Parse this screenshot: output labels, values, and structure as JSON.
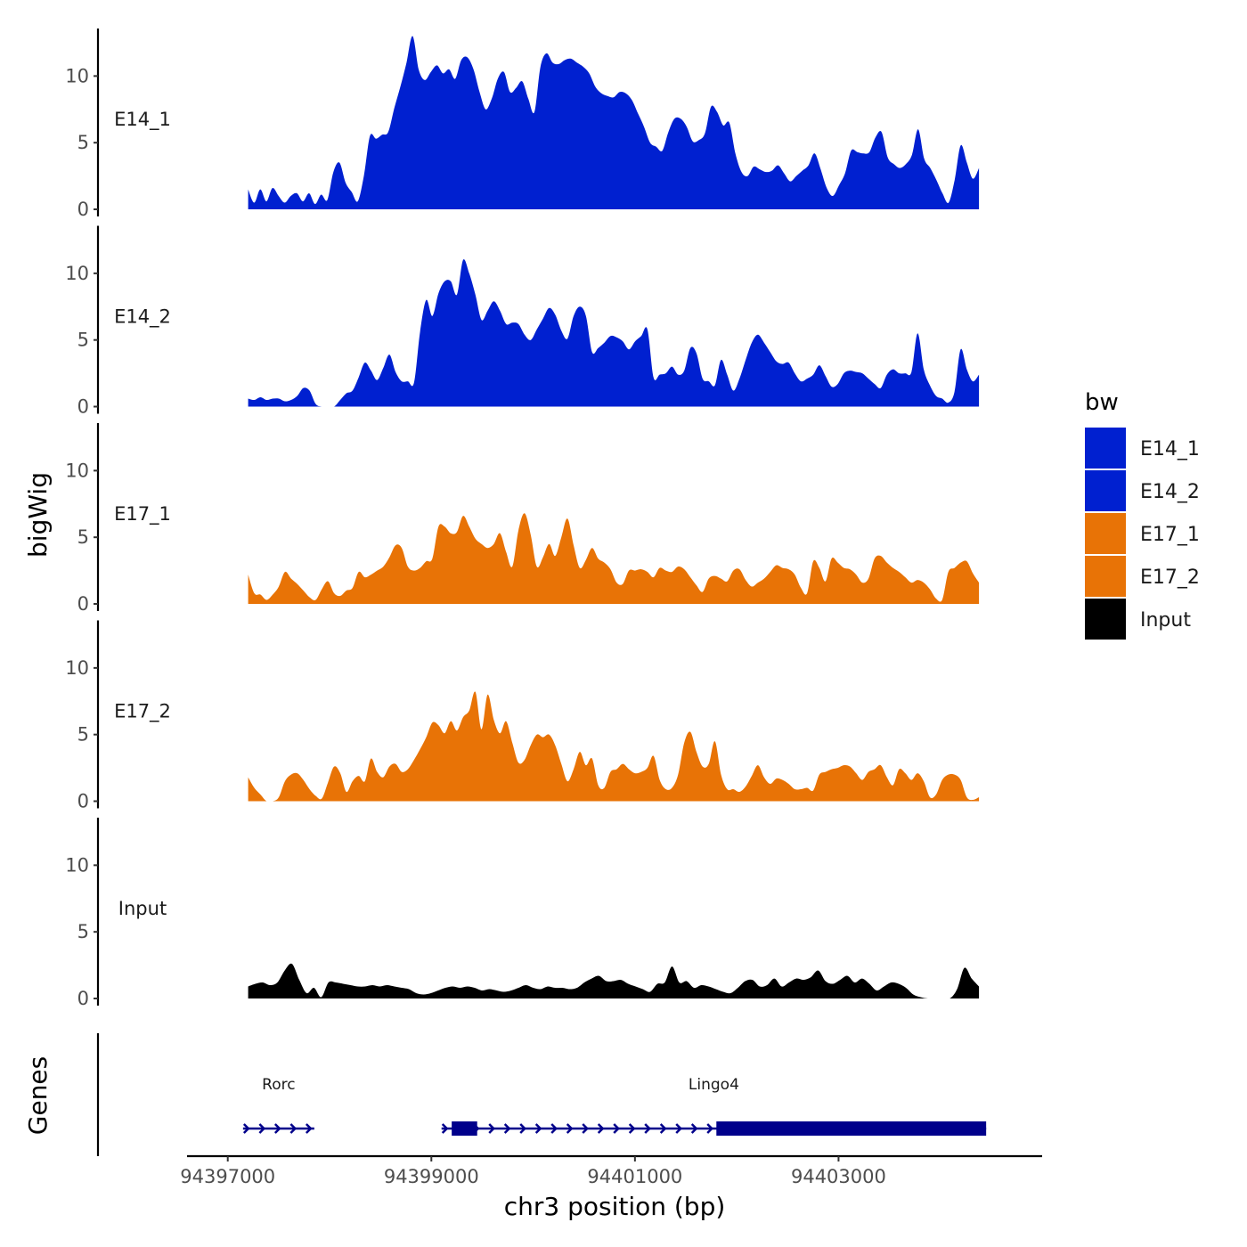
{
  "chart_data": {
    "type": "area",
    "ylabel": "bigWig",
    "genes_label": "Genes",
    "xlabel": "chr3 position (bp)",
    "xlim": [
      94396600,
      94405000
    ],
    "x_ticks": [
      94397000,
      94399000,
      94401000,
      94403000
    ],
    "x_tick_labels": [
      "94397000",
      "94399000",
      "94401000",
      "94403000"
    ],
    "ylim": [
      0,
      13.5
    ],
    "y_ticks": [
      0,
      5,
      10
    ],
    "y_tick_labels": [
      "0",
      "5",
      "10"
    ],
    "x_start": 94397200,
    "x_end": 94404380,
    "series": [
      {
        "name": "E14_1",
        "color": "#0020D0",
        "values": [
          1.5,
          0.5,
          1.5,
          0.6,
          1.6,
          1.0,
          0.5,
          1.0,
          1.2,
          0.6,
          1.2,
          0.4,
          1.1,
          0.7,
          2.8,
          3.5,
          2.0,
          1.3,
          0.6,
          2.5,
          5.5,
          5.3,
          5.6,
          5.8,
          7.6,
          9.2,
          11.0,
          13.0,
          10.5,
          9.7,
          10.3,
          10.8,
          10.2,
          10.5,
          9.8,
          11.2,
          11.4,
          10.5,
          8.8,
          7.5,
          8.3,
          9.8,
          10.3,
          8.8,
          9.1,
          9.6,
          8.3,
          7.3,
          10.7,
          11.7,
          11.0,
          10.9,
          11.2,
          11.3,
          11.0,
          10.7,
          10.2,
          9.2,
          8.7,
          8.5,
          8.4,
          8.8,
          8.7,
          8.2,
          7.2,
          6.2,
          5.0,
          4.7,
          4.4,
          5.8,
          6.8,
          6.8,
          6.2,
          5.1,
          5.2,
          5.7,
          7.7,
          7.3,
          6.3,
          6.5,
          4.2,
          2.8,
          2.5,
          3.2,
          3.0,
          2.8,
          2.9,
          3.3,
          2.7,
          2.1,
          2.5,
          2.9,
          3.3,
          4.2,
          3.0,
          1.6,
          1.0,
          1.8,
          2.7,
          4.4,
          4.3,
          4.2,
          4.3,
          5.4,
          5.8,
          3.9,
          3.4,
          3.1,
          3.4,
          4.1,
          6.0,
          3.8,
          3.1,
          2.2,
          1.2,
          0.5,
          2.2,
          4.8,
          3.5,
          2.3,
          3.1
        ]
      },
      {
        "name": "E14_2",
        "color": "#0020D0",
        "values": [
          0.6,
          0.5,
          0.7,
          0.5,
          0.6,
          0.6,
          0.4,
          0.5,
          0.8,
          1.4,
          1.2,
          0.2,
          0.0,
          0.0,
          0.0,
          0.5,
          1.0,
          1.2,
          2.2,
          3.3,
          2.7,
          2.0,
          2.9,
          3.9,
          2.6,
          1.9,
          1.9,
          1.8,
          5.6,
          8.0,
          6.8,
          8.5,
          9.4,
          9.4,
          8.4,
          11.0,
          10.0,
          8.4,
          6.5,
          7.2,
          7.9,
          7.2,
          6.2,
          6.3,
          6.2,
          5.4,
          5.0,
          5.8,
          6.6,
          7.4,
          6.9,
          5.7,
          5.1,
          6.8,
          7.5,
          6.8,
          4.1,
          4.4,
          4.8,
          5.3,
          5.2,
          4.9,
          4.3,
          4.9,
          5.3,
          5.8,
          2.2,
          2.4,
          2.5,
          3.0,
          2.4,
          2.7,
          4.4,
          4.0,
          2.1,
          1.9,
          1.6,
          3.5,
          2.4,
          1.2,
          2.1,
          3.5,
          4.8,
          5.4,
          4.8,
          4.1,
          3.4,
          3.2,
          3.3,
          2.5,
          1.9,
          2.1,
          2.4,
          3.1,
          2.3,
          1.5,
          1.7,
          2.5,
          2.7,
          2.6,
          2.5,
          2.1,
          1.7,
          1.4,
          2.4,
          2.8,
          2.5,
          2.5,
          2.6,
          5.5,
          2.8,
          1.6,
          0.8,
          0.6,
          0.3,
          1.1,
          4.3,
          2.8,
          1.9,
          2.4
        ]
      },
      {
        "name": "E17_1",
        "color": "#E87306",
        "values": [
          2.2,
          0.8,
          0.7,
          0.3,
          0.7,
          1.3,
          2.4,
          1.9,
          1.5,
          1.0,
          0.5,
          0.3,
          1.1,
          1.7,
          0.8,
          0.6,
          1.0,
          1.2,
          2.4,
          2.0,
          2.2,
          2.5,
          2.8,
          3.5,
          4.4,
          4.2,
          2.8,
          2.5,
          2.7,
          3.2,
          3.4,
          5.8,
          5.8,
          5.3,
          5.4,
          6.6,
          5.8,
          4.9,
          4.5,
          4.2,
          4.5,
          5.3,
          3.9,
          2.8,
          5.5,
          6.8,
          5.2,
          2.8,
          3.5,
          4.5,
          3.6,
          5.0,
          6.4,
          4.4,
          2.7,
          3.3,
          4.2,
          3.4,
          3.1,
          2.6,
          1.6,
          1.5,
          2.5,
          2.5,
          2.6,
          2.4,
          2.0,
          2.7,
          2.5,
          2.4,
          2.8,
          2.6,
          2.0,
          1.4,
          0.9,
          1.9,
          2.1,
          1.9,
          1.7,
          2.5,
          2.6,
          1.8,
          1.3,
          1.6,
          1.9,
          2.4,
          2.9,
          2.7,
          2.6,
          2.2,
          1.2,
          0.8,
          3.2,
          2.7,
          1.7,
          3.4,
          3.1,
          2.7,
          2.6,
          2.2,
          1.6,
          1.9,
          3.4,
          3.6,
          3.1,
          2.7,
          2.4,
          2.0,
          1.6,
          1.8,
          1.6,
          1.1,
          0.4,
          0.3,
          2.4,
          2.7,
          3.1,
          3.2,
          2.3,
          1.6
        ]
      },
      {
        "name": "E17_2",
        "color": "#E87306",
        "values": [
          1.8,
          1.0,
          0.5,
          0.0,
          0.0,
          0.3,
          1.5,
          2.0,
          2.1,
          1.6,
          0.9,
          0.4,
          0.2,
          1.4,
          2.6,
          2.1,
          0.7,
          1.5,
          1.9,
          1.5,
          3.2,
          2.2,
          1.8,
          2.6,
          2.8,
          2.2,
          2.4,
          3.1,
          3.9,
          4.8,
          5.9,
          5.7,
          5.1,
          6.0,
          5.3,
          6.3,
          6.8,
          8.2,
          5.4,
          8.0,
          6.1,
          5.1,
          6.0,
          4.4,
          2.9,
          3.1,
          4.2,
          5.0,
          4.8,
          5.0,
          4.2,
          2.8,
          1.5,
          2.4,
          3.7,
          2.7,
          3.2,
          1.2,
          1.0,
          2.2,
          2.4,
          2.8,
          2.4,
          2.1,
          2.2,
          2.5,
          3.4,
          1.6,
          0.9,
          1.0,
          2.0,
          4.4,
          5.2,
          3.7,
          2.6,
          2.8,
          4.5,
          2.0,
          0.9,
          0.9,
          0.7,
          1.1,
          1.9,
          2.7,
          1.8,
          1.3,
          1.7,
          1.6,
          1.3,
          0.9,
          0.9,
          1.0,
          0.8,
          2.0,
          2.2,
          2.4,
          2.5,
          2.7,
          2.6,
          2.1,
          1.6,
          2.2,
          2.4,
          2.7,
          1.8,
          1.2,
          2.4,
          2.1,
          1.6,
          2.1,
          1.5,
          0.3,
          0.5,
          1.6,
          2.0,
          2.0,
          1.6,
          0.3,
          0.1,
          0.3
        ]
      },
      {
        "name": "Input",
        "color": "#000000",
        "values": [
          0.9,
          1.1,
          1.2,
          1.0,
          1.2,
          2.1,
          2.6,
          1.4,
          0.4,
          0.8,
          0.1,
          1.2,
          1.2,
          1.1,
          1.0,
          0.9,
          0.9,
          1.0,
          0.9,
          1.0,
          0.9,
          0.8,
          0.7,
          0.4,
          0.3,
          0.4,
          0.6,
          0.8,
          0.9,
          0.8,
          0.9,
          0.8,
          0.6,
          0.7,
          0.6,
          0.5,
          0.6,
          0.8,
          1.0,
          0.8,
          0.7,
          0.9,
          0.8,
          0.8,
          0.7,
          0.8,
          1.2,
          1.5,
          1.7,
          1.3,
          1.3,
          1.4,
          1.1,
          0.9,
          0.7,
          0.5,
          1.1,
          1.2,
          2.4,
          1.2,
          1.3,
          0.8,
          1.0,
          0.9,
          0.7,
          0.5,
          0.4,
          0.8,
          1.3,
          1.4,
          0.9,
          1.0,
          1.5,
          0.9,
          1.2,
          1.5,
          1.4,
          1.6,
          2.1,
          1.3,
          1.1,
          1.4,
          1.7,
          1.2,
          1.5,
          1.1,
          0.6,
          0.9,
          1.2,
          1.1,
          0.8,
          0.3,
          0.1,
          0.0,
          0.0,
          0.0,
          0.0,
          0.7,
          2.3,
          1.5,
          0.9
        ]
      }
    ],
    "genes": [
      {
        "name": "Rorc",
        "start": 94397150,
        "end": 94397850,
        "exons": []
      },
      {
        "name": "Lingo4",
        "start": 94399100,
        "end": 94404450,
        "exons": [
          [
            94399200,
            94399450
          ],
          [
            94401800,
            94404450
          ]
        ]
      }
    ],
    "legend": {
      "title": "bw",
      "position": "right",
      "entries": [
        {
          "label": "E14_1",
          "color": "#0020D0"
        },
        {
          "label": "E14_2",
          "color": "#0020D0"
        },
        {
          "label": "E17_1",
          "color": "#E87306"
        },
        {
          "label": "E17_2",
          "color": "#E87306"
        },
        {
          "label": "Input",
          "color": "#000000"
        }
      ]
    },
    "gene_color": "#00008B"
  }
}
